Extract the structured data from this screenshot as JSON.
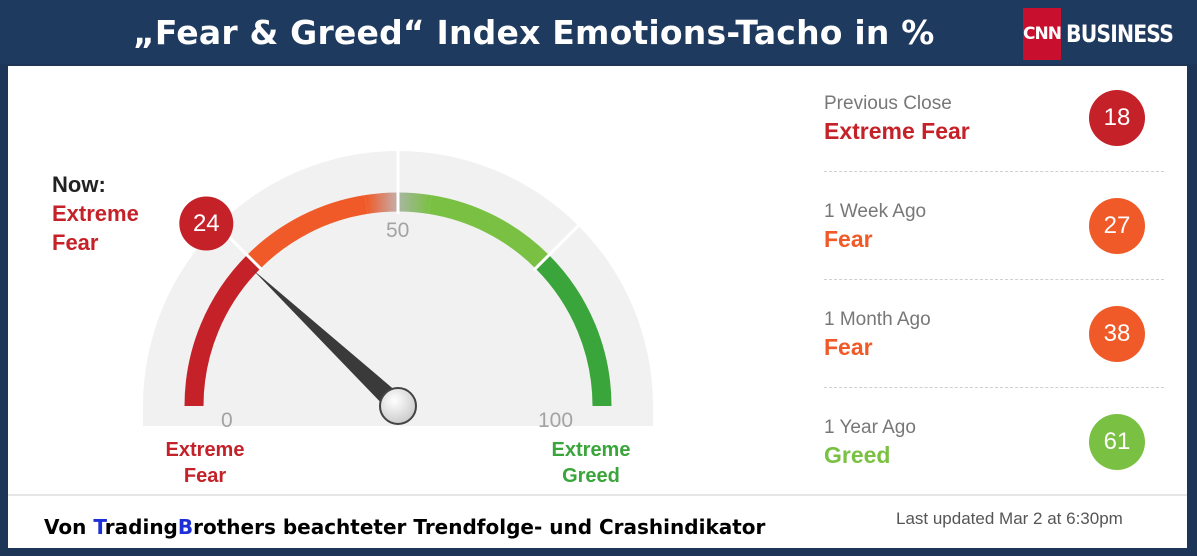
{
  "header": {
    "title": "„Fear & Greed“ Index  Emotions-Tacho in %",
    "logo": {
      "cnn": "CNN",
      "business": "BUSINESS"
    }
  },
  "gauge": {
    "now_label": "Now:",
    "now_value_line1": "Extreme",
    "now_value_line2": "Fear",
    "value": 24,
    "value_text": "24",
    "min": 0,
    "mid": 50,
    "max": 100,
    "tick_min": "0",
    "tick_mid": "50",
    "tick_max": "100",
    "left_label_line1": "Extreme",
    "left_label_line2": "Fear",
    "right_label_line1": "Extreme",
    "right_label_line2": "Greed"
  },
  "history": [
    {
      "period": "Previous Close",
      "rating": "Extreme Fear",
      "value": "18",
      "color": "#c42128"
    },
    {
      "period": "1 Week Ago",
      "rating": "Fear",
      "value": "27",
      "color": "#f05a28"
    },
    {
      "period": "1 Month Ago",
      "rating": "Fear",
      "value": "38",
      "color": "#f05a28"
    },
    {
      "period": "1 Year Ago",
      "rating": "Greed",
      "value": "61",
      "color": "#7ac143"
    }
  ],
  "footer": {
    "prefix": "Von ",
    "t_letter": "T",
    "trading_rest": "rading",
    "b_letter": "B",
    "rest": "rothers beachteter Trendfolge- und Crashindikator",
    "last_updated": "Last updated Mar 2 at 6:30pm"
  },
  "colors": {
    "extreme_fear": "#c42128",
    "fear": "#f05a28",
    "greed": "#7ac143",
    "extreme_greed": "#3aa53a",
    "header_bg": "#1f3a5f"
  }
}
